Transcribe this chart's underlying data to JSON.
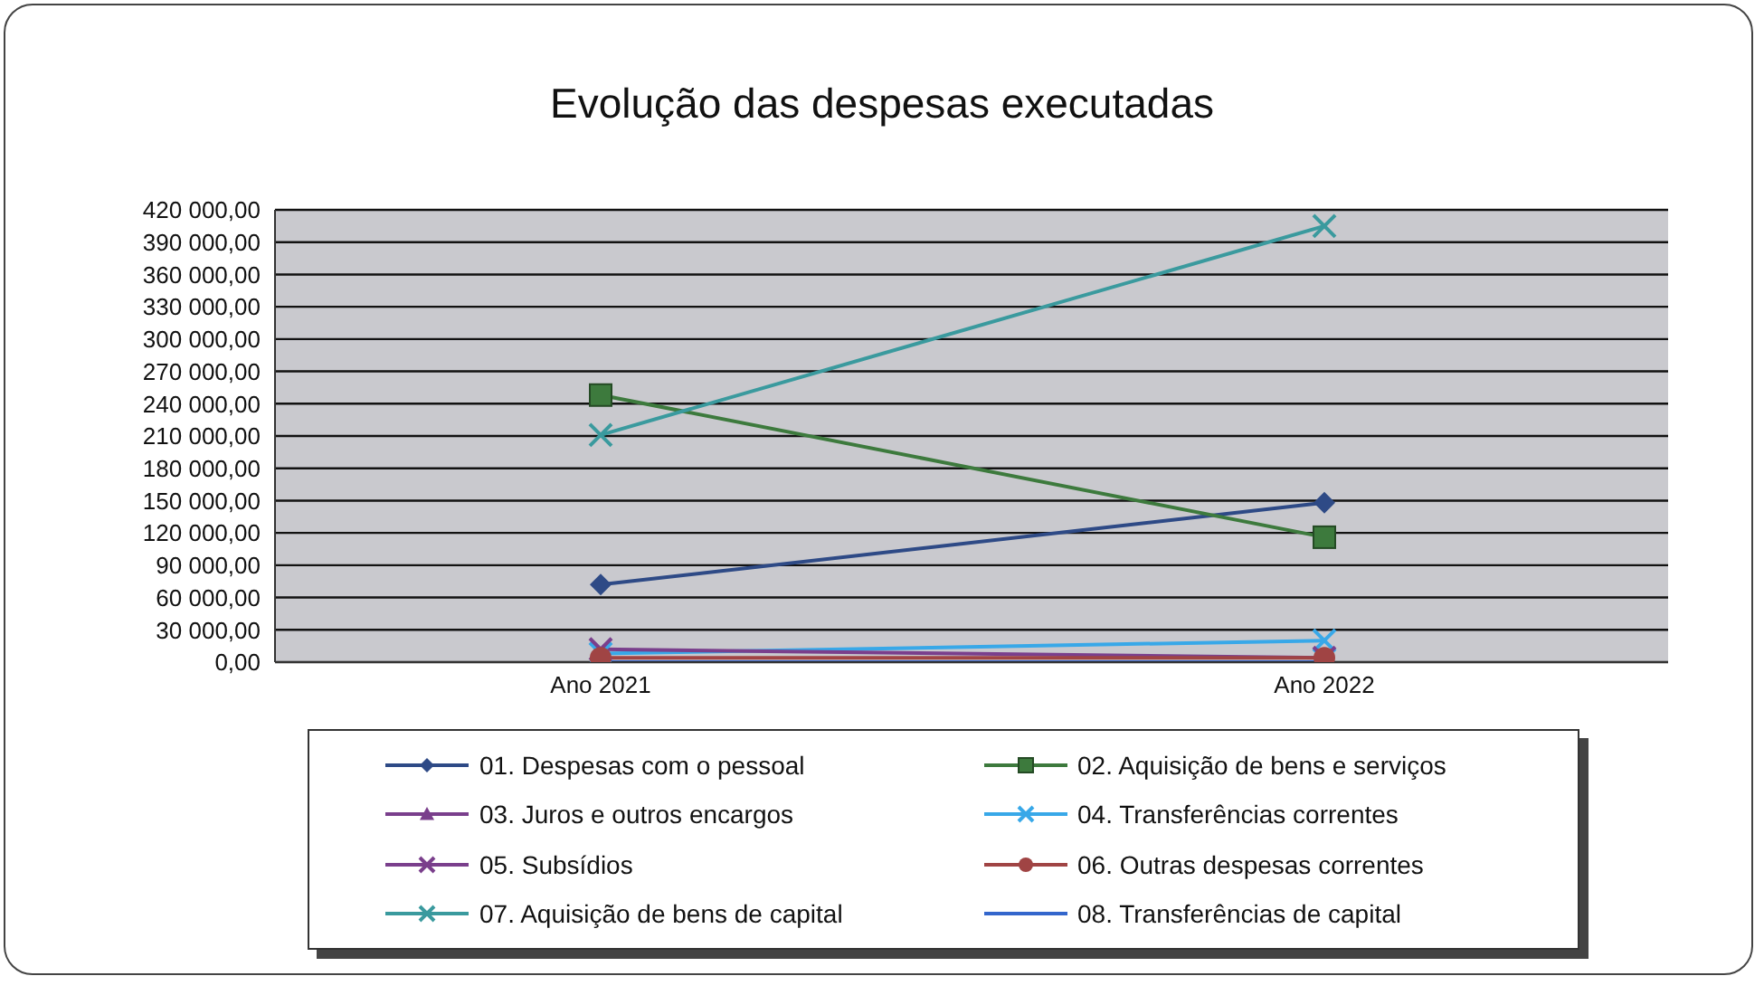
{
  "chart_data": {
    "type": "line",
    "title": "Evolução das despesas executadas",
    "categories": [
      "Ano 2021",
      "Ano 2022"
    ],
    "series": [
      {
        "name": "01. Despesas com o pessoal",
        "color": "#2e4a86",
        "marker": "diamond",
        "values": [
          72000,
          148000
        ]
      },
      {
        "name": "02. Aquisição de bens e serviços",
        "color": "#3d7a3d",
        "marker": "square",
        "values": [
          248000,
          116000
        ]
      },
      {
        "name": "03. Juros e outros encargos",
        "color": "#7a3f8c",
        "marker": "triangle",
        "values": [
          null,
          null
        ]
      },
      {
        "name": "04. Transferências correntes",
        "color": "#38a8e8",
        "marker": "cross",
        "values": [
          8000,
          20000
        ]
      },
      {
        "name": "05. Subsídios",
        "color": "#7a3f8c",
        "marker": "cross",
        "values": [
          12000,
          4000
        ]
      },
      {
        "name": "06. Outras despesas correntes",
        "color": "#a04444",
        "marker": "circle",
        "values": [
          4000,
          4000
        ]
      },
      {
        "name": "07. Aquisição de bens de capital",
        "color": "#3a9a9e",
        "marker": "cross",
        "values": [
          211000,
          405000
        ]
      },
      {
        "name": "08. Transferências de capital",
        "color": "#3366cc",
        "marker": "none",
        "values": [
          0,
          0
        ]
      }
    ],
    "ylim": [
      0,
      420000
    ],
    "yticks": [
      {
        "value": 0,
        "label": "0,00"
      },
      {
        "value": 30000,
        "label": "30 000,00"
      },
      {
        "value": 60000,
        "label": "60 000,00"
      },
      {
        "value": 90000,
        "label": "90 000,00"
      },
      {
        "value": 120000,
        "label": "120 000,00"
      },
      {
        "value": 150000,
        "label": "150 000,00"
      },
      {
        "value": 180000,
        "label": "180 000,00"
      },
      {
        "value": 210000,
        "label": "210 000,00"
      },
      {
        "value": 240000,
        "label": "240 000,00"
      },
      {
        "value": 270000,
        "label": "270 000,00"
      },
      {
        "value": 300000,
        "label": "300 000,00"
      },
      {
        "value": 330000,
        "label": "330 000,00"
      },
      {
        "value": 360000,
        "label": "360 000,00"
      },
      {
        "value": 390000,
        "label": "390 000,00"
      },
      {
        "value": 420000,
        "label": "420 000,00"
      }
    ],
    "grid": "y",
    "legend": "bottom"
  }
}
